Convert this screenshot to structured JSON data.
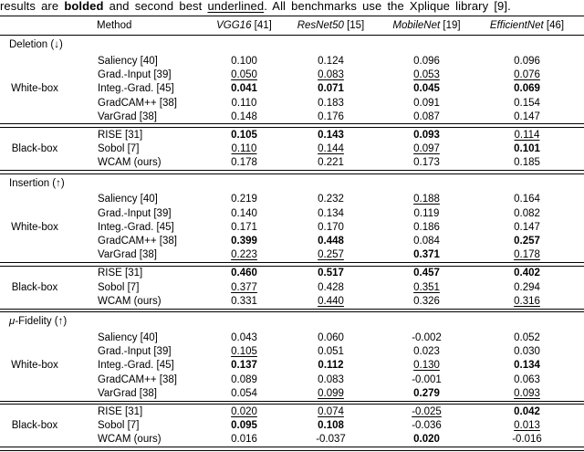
{
  "colors": {
    "text": "#000000",
    "background": "#ffffff",
    "rule": "#000000"
  },
  "caption": {
    "segments": [
      {
        "text": "results are ",
        "style": "normal"
      },
      {
        "text": "bolded",
        "style": "bold"
      },
      {
        "text": " and second best ",
        "style": "normal"
      },
      {
        "text": "underlined",
        "style": "underline"
      },
      {
        "text": ". All benchmarks use the Xplique library ",
        "style": "normal"
      },
      {
        "text": "[9]",
        "style": "cite"
      },
      {
        "text": ".",
        "style": "normal"
      }
    ]
  },
  "table": {
    "method_header": "Method",
    "model_headers": [
      {
        "name": "VGG16",
        "cite": "[41]"
      },
      {
        "name": "ResNet50",
        "cite": "[15]"
      },
      {
        "name": "MobileNet",
        "cite": "[19]"
      },
      {
        "name": "EfficientNet",
        "cite": "[46]"
      }
    ],
    "style_legend": {
      "p": "plain",
      "b": "bold (best)",
      "u": "underline (second best)"
    },
    "sections": [
      {
        "metric_parts": [
          {
            "text": "Deletion (↓)",
            "style": "normal"
          }
        ],
        "groups": [
          {
            "label": "White-box",
            "rows": [
              {
                "method": "Saliency [40]",
                "values": [
                  {
                    "v": "0.100",
                    "s": "p"
                  },
                  {
                    "v": "0.124",
                    "s": "p"
                  },
                  {
                    "v": "0.096",
                    "s": "p"
                  },
                  {
                    "v": "0.096",
                    "s": "p"
                  }
                ]
              },
              {
                "method": "Grad.-Input [39]",
                "values": [
                  {
                    "v": "0.050",
                    "s": "u"
                  },
                  {
                    "v": "0.083",
                    "s": "u"
                  },
                  {
                    "v": "0.053",
                    "s": "u"
                  },
                  {
                    "v": "0.076",
                    "s": "u"
                  }
                ]
              },
              {
                "method": "Integ.-Grad. [45]",
                "values": [
                  {
                    "v": "0.041",
                    "s": "b"
                  },
                  {
                    "v": "0.071",
                    "s": "b"
                  },
                  {
                    "v": "0.045",
                    "s": "b"
                  },
                  {
                    "v": "0.069",
                    "s": "b"
                  }
                ]
              },
              {
                "method": "GradCAM++ [38]",
                "values": [
                  {
                    "v": "0.110",
                    "s": "p"
                  },
                  {
                    "v": "0.183",
                    "s": "p"
                  },
                  {
                    "v": "0.091",
                    "s": "p"
                  },
                  {
                    "v": "0.154",
                    "s": "p"
                  }
                ]
              },
              {
                "method": "VarGrad [38]",
                "values": [
                  {
                    "v": "0.148",
                    "s": "p"
                  },
                  {
                    "v": "0.176",
                    "s": "p"
                  },
                  {
                    "v": "0.087",
                    "s": "p"
                  },
                  {
                    "v": "0.147",
                    "s": "p"
                  }
                ]
              }
            ]
          },
          {
            "label": "Black-box",
            "rows": [
              {
                "method": "RISE [31]",
                "values": [
                  {
                    "v": "0.105",
                    "s": "b"
                  },
                  {
                    "v": "0.143",
                    "s": "b"
                  },
                  {
                    "v": "0.093",
                    "s": "b"
                  },
                  {
                    "v": "0.114",
                    "s": "u"
                  }
                ]
              },
              {
                "method": "Sobol [7]",
                "values": [
                  {
                    "v": "0.110",
                    "s": "u"
                  },
                  {
                    "v": "0.144",
                    "s": "u"
                  },
                  {
                    "v": "0.097",
                    "s": "u"
                  },
                  {
                    "v": "0.101",
                    "s": "b"
                  }
                ]
              },
              {
                "method": "WCAM (ours)",
                "values": [
                  {
                    "v": "0.178",
                    "s": "p"
                  },
                  {
                    "v": "0.221",
                    "s": "p"
                  },
                  {
                    "v": "0.173",
                    "s": "p"
                  },
                  {
                    "v": "0.185",
                    "s": "p"
                  }
                ]
              }
            ]
          }
        ]
      },
      {
        "metric_parts": [
          {
            "text": "Insertion (↑)",
            "style": "normal"
          }
        ],
        "groups": [
          {
            "label": "White-box",
            "rows": [
              {
                "method": "Saliency [40]",
                "values": [
                  {
                    "v": "0.219",
                    "s": "p"
                  },
                  {
                    "v": "0.232",
                    "s": "p"
                  },
                  {
                    "v": "0.188",
                    "s": "u"
                  },
                  {
                    "v": "0.164",
                    "s": "p"
                  }
                ]
              },
              {
                "method": "Grad.-Input [39]",
                "values": [
                  {
                    "v": "0.140",
                    "s": "p"
                  },
                  {
                    "v": "0.134",
                    "s": "p"
                  },
                  {
                    "v": "0.119",
                    "s": "p"
                  },
                  {
                    "v": "0.082",
                    "s": "p"
                  }
                ]
              },
              {
                "method": "Integ.-Grad. [45]",
                "values": [
                  {
                    "v": "0.171",
                    "s": "p"
                  },
                  {
                    "v": "0.170",
                    "s": "p"
                  },
                  {
                    "v": "0.186",
                    "s": "p"
                  },
                  {
                    "v": "0.147",
                    "s": "p"
                  }
                ]
              },
              {
                "method": "GradCAM++ [38]",
                "values": [
                  {
                    "v": "0.399",
                    "s": "b"
                  },
                  {
                    "v": "0.448",
                    "s": "b"
                  },
                  {
                    "v": "0.084",
                    "s": "p"
                  },
                  {
                    "v": "0.257",
                    "s": "b"
                  }
                ]
              },
              {
                "method": "VarGrad [38]",
                "values": [
                  {
                    "v": "0.223",
                    "s": "u"
                  },
                  {
                    "v": "0.257",
                    "s": "u"
                  },
                  {
                    "v": "0.371",
                    "s": "b"
                  },
                  {
                    "v": "0.178",
                    "s": "u"
                  }
                ]
              }
            ]
          },
          {
            "label": "Black-box",
            "rows": [
              {
                "method": "RISE [31]",
                "values": [
                  {
                    "v": "0.460",
                    "s": "b"
                  },
                  {
                    "v": "0.517",
                    "s": "b"
                  },
                  {
                    "v": "0.457",
                    "s": "b"
                  },
                  {
                    "v": "0.402",
                    "s": "b"
                  }
                ]
              },
              {
                "method": "Sobol [7]",
                "values": [
                  {
                    "v": "0.377",
                    "s": "u"
                  },
                  {
                    "v": "0.428",
                    "s": "p"
                  },
                  {
                    "v": "0.351",
                    "s": "u"
                  },
                  {
                    "v": "0.294",
                    "s": "p"
                  }
                ]
              },
              {
                "method": "WCAM (ours)",
                "values": [
                  {
                    "v": "0.331",
                    "s": "p"
                  },
                  {
                    "v": "0.440",
                    "s": "u"
                  },
                  {
                    "v": "0.326",
                    "s": "p"
                  },
                  {
                    "v": "0.316",
                    "s": "u"
                  }
                ]
              }
            ]
          }
        ]
      },
      {
        "metric_parts": [
          {
            "text": "μ",
            "style": "italic"
          },
          {
            "text": "-Fidelity (↑)",
            "style": "normal"
          }
        ],
        "groups": [
          {
            "label": "White-box",
            "rows": [
              {
                "method": "Saliency [40]",
                "values": [
                  {
                    "v": "0.043",
                    "s": "p"
                  },
                  {
                    "v": "0.060",
                    "s": "p"
                  },
                  {
                    "v": "-0.002",
                    "s": "p"
                  },
                  {
                    "v": "0.052",
                    "s": "p"
                  }
                ]
              },
              {
                "method": "Grad.-Input [39]",
                "values": [
                  {
                    "v": "0.105",
                    "s": "u"
                  },
                  {
                    "v": "0.051",
                    "s": "p"
                  },
                  {
                    "v": "0.023",
                    "s": "p"
                  },
                  {
                    "v": "0.030",
                    "s": "p"
                  }
                ]
              },
              {
                "method": "Integ.-Grad. [45]",
                "values": [
                  {
                    "v": "0.137",
                    "s": "b"
                  },
                  {
                    "v": "0.112",
                    "s": "b"
                  },
                  {
                    "v": "0.130",
                    "s": "u"
                  },
                  {
                    "v": "0.134",
                    "s": "b"
                  }
                ]
              },
              {
                "method": "GradCAM++ [38]",
                "values": [
                  {
                    "v": "0.089",
                    "s": "p"
                  },
                  {
                    "v": "0.083",
                    "s": "p"
                  },
                  {
                    "v": "-0.001",
                    "s": "p"
                  },
                  {
                    "v": "0.063",
                    "s": "p"
                  }
                ]
              },
              {
                "method": "VarGrad [38]",
                "values": [
                  {
                    "v": "0.054",
                    "s": "p"
                  },
                  {
                    "v": "0.099",
                    "s": "u"
                  },
                  {
                    "v": "0.279",
                    "s": "b"
                  },
                  {
                    "v": "0.093",
                    "s": "u"
                  }
                ]
              }
            ]
          },
          {
            "label": "Black-box",
            "rows": [
              {
                "method": "RISE [31]",
                "values": [
                  {
                    "v": "0.020",
                    "s": "u"
                  },
                  {
                    "v": "0.074",
                    "s": "u"
                  },
                  {
                    "v": "-0.025",
                    "s": "u"
                  },
                  {
                    "v": "0.042",
                    "s": "b"
                  }
                ]
              },
              {
                "method": "Sobol [7]",
                "values": [
                  {
                    "v": "0.095",
                    "s": "b"
                  },
                  {
                    "v": "0.108",
                    "s": "b"
                  },
                  {
                    "v": "-0.036",
                    "s": "p"
                  },
                  {
                    "v": "0.013",
                    "s": "u"
                  }
                ]
              },
              {
                "method": "WCAM (ours)",
                "values": [
                  {
                    "v": "0.016",
                    "s": "p"
                  },
                  {
                    "v": "-0.037",
                    "s": "p"
                  },
                  {
                    "v": "0.020",
                    "s": "b"
                  },
                  {
                    "v": "-0.016",
                    "s": "p"
                  }
                ]
              }
            ]
          }
        ]
      }
    ]
  }
}
